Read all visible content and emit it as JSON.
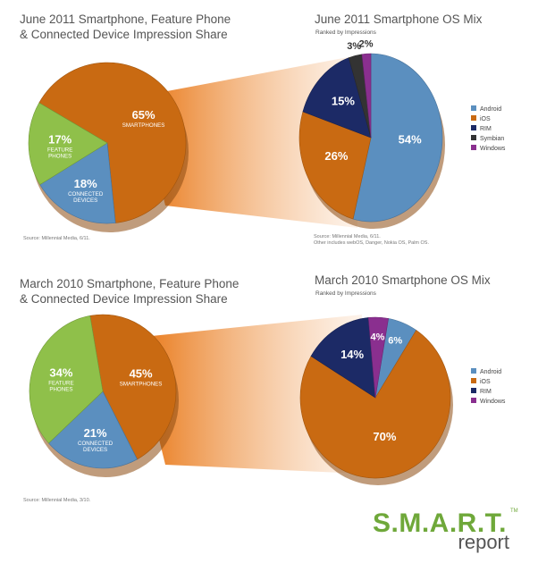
{
  "chart_data": [
    {
      "type": "pie",
      "title": "June 2011 Smartphone, Feature Phone & Connected Device Impression Share",
      "title_lines": [
        "June 2011 Smartphone, Feature Phone",
        "& Connected Device Impression Share"
      ],
      "source": "Source: Millennial Media, 6/11.",
      "slices": [
        {
          "value": 65,
          "pct_label": "65%",
          "label_lines": [
            "SMARTPHONES"
          ],
          "color": "#c96a12"
        },
        {
          "value": 18,
          "pct_label": "18%",
          "label_lines": [
            "CONNECTED",
            "DEVICES"
          ],
          "color": "#5b8fbf"
        },
        {
          "value": 17,
          "pct_label": "17%",
          "label_lines": [
            "FEATURE",
            "PHONES"
          ],
          "color": "#8fc04a"
        }
      ]
    },
    {
      "type": "pie",
      "title": "June 2011 Smartphone OS Mix",
      "subtitle": "Ranked by Impressions",
      "source": "Source: Millennial Media, 6/11.",
      "note": "Other includes webOS, Danger, Nokia OS, Palm OS.",
      "slices": [
        {
          "name": "Android",
          "value": 54,
          "pct_label": "54%",
          "color": "#5b8fbf"
        },
        {
          "name": "iOS",
          "value": 26,
          "pct_label": "26%",
          "color": "#c96a12"
        },
        {
          "name": "RIM",
          "value": 15,
          "pct_label": "15%",
          "color": "#1c2a66"
        },
        {
          "name": "Symbian",
          "value": 3,
          "pct_label": "3%",
          "color": "#333333"
        },
        {
          "name": "Windows",
          "value": 2,
          "pct_label": "2%",
          "color": "#8a2f8f"
        }
      ],
      "legend": "right"
    },
    {
      "type": "pie",
      "title": "March 2010 Smartphone, Feature Phone & Connected Device Impression Share",
      "title_lines": [
        "March 2010 Smartphone, Feature Phone",
        "& Connected Device Impression Share"
      ],
      "source": "Source: Millennial Media, 3/10.",
      "slices": [
        {
          "value": 45,
          "pct_label": "45%",
          "label_lines": [
            "SMARTPHONES"
          ],
          "color": "#c96a12"
        },
        {
          "value": 21,
          "pct_label": "21%",
          "label_lines": [
            "CONNECTED",
            "DEVICES"
          ],
          "color": "#5b8fbf"
        },
        {
          "value": 34,
          "pct_label": "34%",
          "label_lines": [
            "FEATURE",
            "PHONES"
          ],
          "color": "#8fc04a"
        }
      ]
    },
    {
      "type": "pie",
      "title": "March 2010 Smartphone OS Mix",
      "subtitle": "Ranked by Impressions",
      "slices": [
        {
          "name": "Android",
          "value": 6,
          "pct_label": "6%",
          "color": "#5b8fbf"
        },
        {
          "name": "iOS",
          "value": 70,
          "pct_label": "70%",
          "color": "#c96a12"
        },
        {
          "name": "RIM",
          "value": 14,
          "pct_label": "14%",
          "color": "#1c2a66"
        },
        {
          "name": "Windows",
          "value": 4,
          "pct_label": "4%",
          "color": "#8a2f8f"
        }
      ],
      "legend": "right"
    }
  ],
  "logo": {
    "main": "S.M.A.R.T.",
    "tm": "TM",
    "sub": "report",
    "colors": {
      "main": "#6fa83a",
      "sub": "#555555"
    }
  }
}
